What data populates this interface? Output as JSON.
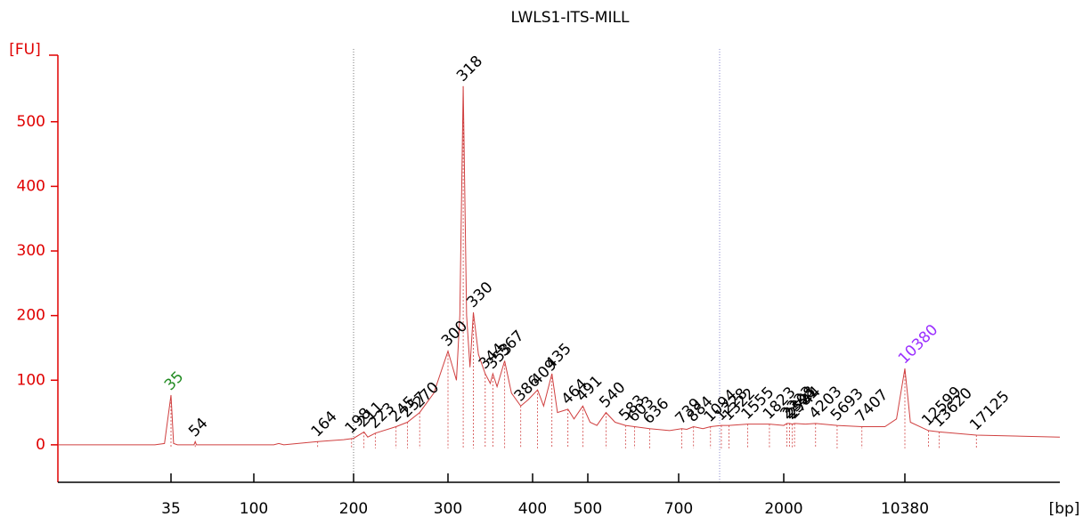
{
  "chart_data": {
    "type": "line",
    "title": "LWLS1-ITS-MILL",
    "y_label": "[FU]",
    "x_label": "[bp]",
    "x": [
      0,
      30,
      33,
      35,
      37,
      40,
      53,
      54,
      55,
      100,
      120,
      125,
      130,
      164,
      190,
      200,
      211,
      215,
      223,
      245,
      257,
      270,
      285,
      300,
      310,
      314,
      318,
      322,
      326,
      330,
      336,
      344,
      350,
      353,
      358,
      367,
      375,
      386,
      395,
      409,
      420,
      435,
      445,
      464,
      475,
      491,
      505,
      520,
      540,
      560,
      583,
      603,
      636,
      680,
      739,
      800,
      884,
      1000,
      1094,
      1228,
      1322,
      1555,
      1823,
      2000,
      2223,
      2398,
      2581,
      2744,
      3500,
      4203,
      5693,
      7407,
      9000,
      9800,
      10380,
      10900,
      12599,
      13620,
      17125,
      25000
    ],
    "series": [
      {
        "name": "LWLS1-ITS-MILL",
        "color": "#d04040",
        "values": [
          0,
          0,
          2,
          77,
          2,
          0,
          0,
          5,
          0,
          0,
          0,
          2,
          0,
          5,
          8,
          10,
          20,
          12,
          18,
          28,
          35,
          50,
          80,
          145,
          100,
          200,
          555,
          200,
          120,
          205,
          140,
          110,
          95,
          110,
          90,
          130,
          80,
          60,
          70,
          85,
          60,
          110,
          50,
          55,
          40,
          60,
          35,
          30,
          50,
          35,
          30,
          28,
          25,
          22,
          25,
          24,
          28,
          25,
          28,
          30,
          30,
          32,
          32,
          30,
          33,
          33,
          32,
          33,
          32,
          33,
          30,
          28,
          28,
          40,
          118,
          35,
          22,
          20,
          15,
          12
        ]
      }
    ],
    "peaks": [
      {
        "x": 35,
        "y": 77,
        "color": "#228b22"
      },
      {
        "x": 54,
        "y": 5,
        "color": "#000000"
      },
      {
        "x": 164,
        "y": 5,
        "color": "#000000"
      },
      {
        "x": 198,
        "y": 10,
        "color": "#000000"
      },
      {
        "x": 211,
        "y": 20,
        "color": "#000000"
      },
      {
        "x": 223,
        "y": 18,
        "color": "#000000"
      },
      {
        "x": 245,
        "y": 28,
        "color": "#000000"
      },
      {
        "x": 257,
        "y": 35,
        "color": "#000000"
      },
      {
        "x": 270,
        "y": 50,
        "color": "#000000"
      },
      {
        "x": 300,
        "y": 145,
        "color": "#000000"
      },
      {
        "x": 318,
        "y": 555,
        "color": "#000000"
      },
      {
        "x": 330,
        "y": 205,
        "color": "#000000"
      },
      {
        "x": 344,
        "y": 110,
        "color": "#000000"
      },
      {
        "x": 353,
        "y": 110,
        "color": "#000000"
      },
      {
        "x": 367,
        "y": 130,
        "color": "#000000"
      },
      {
        "x": 386,
        "y": 60,
        "color": "#000000"
      },
      {
        "x": 409,
        "y": 85,
        "color": "#000000"
      },
      {
        "x": 435,
        "y": 110,
        "color": "#000000"
      },
      {
        "x": 464,
        "y": 55,
        "color": "#000000"
      },
      {
        "x": 491,
        "y": 60,
        "color": "#000000"
      },
      {
        "x": 540,
        "y": 50,
        "color": "#000000"
      },
      {
        "x": 583,
        "y": 30,
        "color": "#000000"
      },
      {
        "x": 603,
        "y": 28,
        "color": "#000000"
      },
      {
        "x": 636,
        "y": 25,
        "color": "#000000"
      },
      {
        "x": 739,
        "y": 25,
        "color": "#000000"
      },
      {
        "x": 884,
        "y": 28,
        "color": "#000000"
      },
      {
        "x": 1094,
        "y": 28,
        "color": "#000000"
      },
      {
        "x": 1228,
        "y": 30,
        "color": "#000000"
      },
      {
        "x": 1322,
        "y": 30,
        "color": "#000000"
      },
      {
        "x": 1555,
        "y": 32,
        "color": "#000000"
      },
      {
        "x": 1823,
        "y": 32,
        "color": "#000000"
      },
      {
        "x": 2223,
        "y": 33,
        "color": "#000000"
      },
      {
        "x": 2398,
        "y": 33,
        "color": "#000000"
      },
      {
        "x": 2581,
        "y": 32,
        "color": "#000000"
      },
      {
        "x": 2744,
        "y": 33,
        "color": "#000000"
      },
      {
        "x": 4203,
        "y": 33,
        "color": "#000000"
      },
      {
        "x": 5693,
        "y": 30,
        "color": "#000000"
      },
      {
        "x": 7407,
        "y": 28,
        "color": "#000000"
      },
      {
        "x": 10380,
        "y": 118,
        "color": "#9b30ff"
      },
      {
        "x": 12599,
        "y": 22,
        "color": "#000000"
      },
      {
        "x": 13620,
        "y": 20,
        "color": "#000000"
      },
      {
        "x": 17125,
        "y": 15,
        "color": "#000000"
      }
    ],
    "xlim": [
      0,
      25000
    ],
    "xticks": [
      35,
      100,
      200,
      300,
      400,
      500,
      700,
      2000,
      10380
    ],
    "ylim": [
      -58,
      603
    ],
    "yticks": [
      0,
      100,
      200,
      300,
      400,
      500
    ]
  }
}
